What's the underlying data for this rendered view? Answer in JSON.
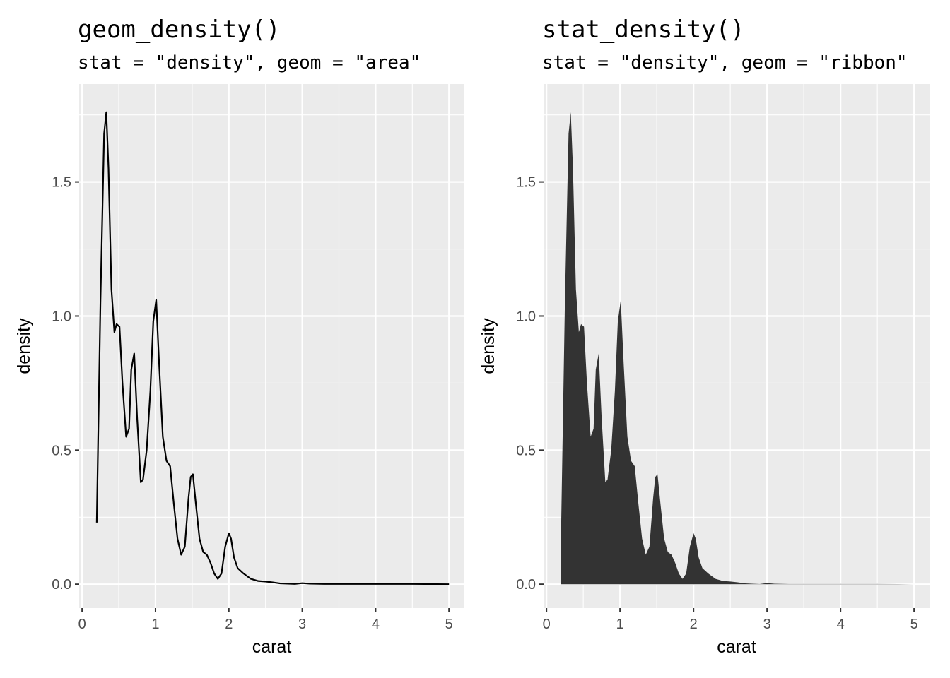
{
  "chart_data": [
    {
      "type": "line",
      "title": "geom_density()",
      "subtitle": "stat = \"density\", geom = \"area\"",
      "xlabel": "carat",
      "ylabel": "density",
      "xlim": [
        -0.04,
        5.21
      ],
      "ylim": [
        -0.089,
        1.865
      ],
      "x_ticks": [
        0,
        1,
        2,
        3,
        4,
        5
      ],
      "y_ticks": [
        0.0,
        0.5,
        1.0,
        1.5
      ],
      "x_tick_labels": [
        "0",
        "1",
        "2",
        "3",
        "4",
        "5"
      ],
      "y_tick_labels": [
        "0.0",
        "0.5",
        "1.0",
        "1.5"
      ],
      "grid": true,
      "x": [
        0.2,
        0.25,
        0.3,
        0.33,
        0.36,
        0.4,
        0.44,
        0.47,
        0.51,
        0.55,
        0.6,
        0.64,
        0.67,
        0.71,
        0.75,
        0.8,
        0.83,
        0.88,
        0.93,
        0.97,
        1.01,
        1.05,
        1.1,
        1.15,
        1.2,
        1.25,
        1.3,
        1.35,
        1.4,
        1.45,
        1.48,
        1.51,
        1.55,
        1.6,
        1.65,
        1.7,
        1.75,
        1.8,
        1.85,
        1.9,
        1.95,
        2.0,
        2.03,
        2.07,
        2.12,
        2.2,
        2.3,
        2.4,
        2.5,
        2.6,
        2.7,
        2.8,
        2.9,
        3.0,
        3.1,
        3.3,
        3.6,
        4.0,
        4.5,
        5.0
      ],
      "values": [
        0.23,
        1.05,
        1.68,
        1.76,
        1.55,
        1.1,
        0.94,
        0.97,
        0.96,
        0.75,
        0.55,
        0.58,
        0.8,
        0.86,
        0.62,
        0.38,
        0.39,
        0.5,
        0.72,
        0.98,
        1.06,
        0.82,
        0.55,
        0.46,
        0.44,
        0.3,
        0.17,
        0.11,
        0.14,
        0.32,
        0.4,
        0.41,
        0.3,
        0.17,
        0.12,
        0.11,
        0.08,
        0.04,
        0.02,
        0.04,
        0.14,
        0.19,
        0.17,
        0.1,
        0.06,
        0.04,
        0.02,
        0.012,
        0.01,
        0.007,
        0.003,
        0.002,
        0.001,
        0.004,
        0.002,
        0.001,
        0.001,
        0.001,
        0.001,
        0.0
      ],
      "line_color": "#000000"
    },
    {
      "type": "area",
      "title": "stat_density()",
      "subtitle": "stat = \"density\", geom = \"ribbon\"",
      "xlabel": "carat",
      "ylabel": "density",
      "xlim": [
        -0.04,
        5.21
      ],
      "ylim": [
        -0.089,
        1.865
      ],
      "x_ticks": [
        0,
        1,
        2,
        3,
        4,
        5
      ],
      "y_ticks": [
        0.0,
        0.5,
        1.0,
        1.5
      ],
      "x_tick_labels": [
        "0",
        "1",
        "2",
        "3",
        "4",
        "5"
      ],
      "y_tick_labels": [
        "0.0",
        "0.5",
        "1.0",
        "1.5"
      ],
      "grid": true,
      "x": [
        0.2,
        0.25,
        0.3,
        0.33,
        0.36,
        0.4,
        0.44,
        0.47,
        0.51,
        0.55,
        0.6,
        0.64,
        0.67,
        0.71,
        0.75,
        0.8,
        0.83,
        0.88,
        0.93,
        0.97,
        1.01,
        1.05,
        1.1,
        1.15,
        1.2,
        1.25,
        1.3,
        1.35,
        1.4,
        1.45,
        1.48,
        1.51,
        1.55,
        1.6,
        1.65,
        1.7,
        1.75,
        1.8,
        1.85,
        1.9,
        1.95,
        2.0,
        2.03,
        2.07,
        2.12,
        2.2,
        2.3,
        2.4,
        2.5,
        2.6,
        2.7,
        2.8,
        2.9,
        3.0,
        3.1,
        3.3,
        3.6,
        4.0,
        4.5,
        5.0
      ],
      "values": [
        0.23,
        1.05,
        1.68,
        1.76,
        1.55,
        1.1,
        0.94,
        0.97,
        0.96,
        0.75,
        0.55,
        0.58,
        0.8,
        0.86,
        0.62,
        0.38,
        0.39,
        0.5,
        0.72,
        0.98,
        1.06,
        0.82,
        0.55,
        0.46,
        0.44,
        0.3,
        0.17,
        0.11,
        0.14,
        0.32,
        0.4,
        0.41,
        0.3,
        0.17,
        0.12,
        0.11,
        0.08,
        0.04,
        0.02,
        0.04,
        0.14,
        0.19,
        0.17,
        0.1,
        0.06,
        0.04,
        0.02,
        0.012,
        0.01,
        0.007,
        0.003,
        0.002,
        0.001,
        0.004,
        0.002,
        0.001,
        0.001,
        0.001,
        0.001,
        0.0
      ],
      "fill_color": "#333333"
    }
  ],
  "theme": {
    "panel_background": "#ebebeb",
    "grid_color": "#ffffff",
    "axis_text_color": "#4d4d4d",
    "tick_color": "#333333",
    "title_color": "#000000"
  }
}
